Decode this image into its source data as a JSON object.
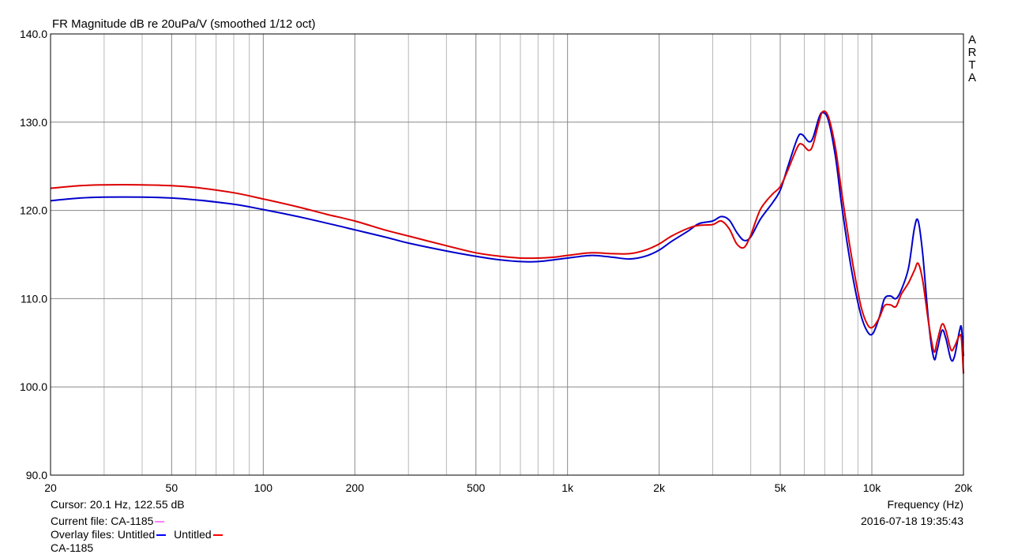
{
  "title": "FR Magnitude dB re 20uPa/V (smoothed 1/12 oct)",
  "watermark": [
    "A",
    "R",
    "T",
    "A"
  ],
  "info": {
    "cursor": "Cursor: 20.1 Hz, 122.55 dB",
    "frequency_label": "Frequency (Hz)",
    "current_file_label": "Current file: CA-1185",
    "current_file_color": "#ff80ff",
    "timestamp": "2016-07-18  19:35:43",
    "overlay_label": "Overlay files:",
    "overlay_files": [
      {
        "name": "Untitled",
        "color": "#0000ff"
      },
      {
        "name": "Untitled",
        "color": "#ff0000"
      }
    ],
    "footer_name": "CA-1185"
  },
  "chart_data": {
    "type": "line",
    "title": "FR Magnitude dB re 20uPa/V (smoothed 1/12 oct)",
    "xlabel": "Frequency (Hz)",
    "ylabel": "",
    "xscale": "log",
    "xlim": [
      20,
      20000
    ],
    "ylim": [
      90,
      140
    ],
    "grid": true,
    "x_ticks": [
      {
        "value": 20,
        "label": "20"
      },
      {
        "value": 50,
        "label": "50"
      },
      {
        "value": 100,
        "label": "100"
      },
      {
        "value": 200,
        "label": "200"
      },
      {
        "value": 500,
        "label": "500"
      },
      {
        "value": 1000,
        "label": "1k"
      },
      {
        "value": 2000,
        "label": "2k"
      },
      {
        "value": 5000,
        "label": "5k"
      },
      {
        "value": 10000,
        "label": "10k"
      },
      {
        "value": 20000,
        "label": "20k"
      }
    ],
    "y_ticks": [
      {
        "value": 90,
        "label": "90.0"
      },
      {
        "value": 100,
        "label": "100.0"
      },
      {
        "value": 110,
        "label": "110.0"
      },
      {
        "value": 120,
        "label": "120.0"
      },
      {
        "value": 130,
        "label": "130.0"
      },
      {
        "value": 140,
        "label": "140.0"
      }
    ],
    "series": [
      {
        "name": "Untitled",
        "color": "#0000cc",
        "points": [
          [
            20,
            121.1
          ],
          [
            25,
            121.4
          ],
          [
            30,
            121.5
          ],
          [
            40,
            121.5
          ],
          [
            50,
            121.4
          ],
          [
            60,
            121.2
          ],
          [
            80,
            120.7
          ],
          [
            100,
            120.1
          ],
          [
            130,
            119.3
          ],
          [
            160,
            118.6
          ],
          [
            200,
            117.8
          ],
          [
            250,
            117.0
          ],
          [
            300,
            116.3
          ],
          [
            400,
            115.4
          ],
          [
            500,
            114.8
          ],
          [
            600,
            114.4
          ],
          [
            700,
            114.2
          ],
          [
            800,
            114.2
          ],
          [
            900,
            114.4
          ],
          [
            1000,
            114.6
          ],
          [
            1200,
            114.9
          ],
          [
            1400,
            114.7
          ],
          [
            1600,
            114.5
          ],
          [
            1800,
            114.8
          ],
          [
            2000,
            115.5
          ],
          [
            2200,
            116.5
          ],
          [
            2500,
            117.7
          ],
          [
            2700,
            118.5
          ],
          [
            3000,
            118.8
          ],
          [
            3200,
            119.3
          ],
          [
            3400,
            118.9
          ],
          [
            3600,
            117.5
          ],
          [
            3800,
            116.6
          ],
          [
            4000,
            117.0
          ],
          [
            4300,
            119.0
          ],
          [
            4700,
            120.8
          ],
          [
            5000,
            122.3
          ],
          [
            5300,
            125.0
          ],
          [
            5700,
            128.2
          ],
          [
            5900,
            128.6
          ],
          [
            6200,
            127.8
          ],
          [
            6400,
            128.2
          ],
          [
            6700,
            130.5
          ],
          [
            6900,
            131.1
          ],
          [
            7200,
            130.2
          ],
          [
            7600,
            126.0
          ],
          [
            8000,
            120.0
          ],
          [
            8600,
            113.0
          ],
          [
            9200,
            108.2
          ],
          [
            9700,
            106.2
          ],
          [
            10100,
            106.1
          ],
          [
            10600,
            108.0
          ],
          [
            11000,
            110.0
          ],
          [
            11500,
            110.3
          ],
          [
            12000,
            110.0
          ],
          [
            12500,
            111.0
          ],
          [
            13200,
            113.5
          ],
          [
            13800,
            118.0
          ],
          [
            14200,
            118.8
          ],
          [
            14700,
            115.0
          ],
          [
            15400,
            107.0
          ],
          [
            16000,
            103.2
          ],
          [
            16400,
            104.2
          ],
          [
            17000,
            106.4
          ],
          [
            17500,
            105.5
          ],
          [
            18200,
            103.1
          ],
          [
            18700,
            103.5
          ],
          [
            19400,
            106.3
          ],
          [
            19700,
            106.7
          ],
          [
            20000,
            103.5
          ]
        ]
      },
      {
        "name": "Untitled",
        "color": "#dd0000",
        "points": [
          [
            20,
            122.5
          ],
          [
            25,
            122.8
          ],
          [
            30,
            122.9
          ],
          [
            40,
            122.9
          ],
          [
            50,
            122.8
          ],
          [
            60,
            122.6
          ],
          [
            80,
            122.0
          ],
          [
            100,
            121.3
          ],
          [
            130,
            120.4
          ],
          [
            160,
            119.6
          ],
          [
            200,
            118.8
          ],
          [
            250,
            117.8
          ],
          [
            300,
            117.1
          ],
          [
            400,
            116.0
          ],
          [
            500,
            115.2
          ],
          [
            600,
            114.8
          ],
          [
            700,
            114.6
          ],
          [
            800,
            114.6
          ],
          [
            900,
            114.7
          ],
          [
            1000,
            114.9
          ],
          [
            1200,
            115.2
          ],
          [
            1400,
            115.1
          ],
          [
            1600,
            115.1
          ],
          [
            1800,
            115.5
          ],
          [
            2000,
            116.2
          ],
          [
            2200,
            117.1
          ],
          [
            2500,
            118.0
          ],
          [
            2700,
            118.3
          ],
          [
            3000,
            118.4
          ],
          [
            3200,
            118.8
          ],
          [
            3400,
            117.9
          ],
          [
            3600,
            116.2
          ],
          [
            3800,
            115.8
          ],
          [
            4000,
            117.2
          ],
          [
            4300,
            120.1
          ],
          [
            4700,
            121.8
          ],
          [
            5000,
            122.7
          ],
          [
            5300,
            124.6
          ],
          [
            5700,
            127.2
          ],
          [
            5900,
            127.5
          ],
          [
            6200,
            126.8
          ],
          [
            6400,
            127.4
          ],
          [
            6700,
            130.0
          ],
          [
            6900,
            131.2
          ],
          [
            7200,
            130.6
          ],
          [
            7600,
            127.0
          ],
          [
            8000,
            121.5
          ],
          [
            8600,
            114.5
          ],
          [
            9200,
            109.2
          ],
          [
            9700,
            107.0
          ],
          [
            10100,
            106.8
          ],
          [
            10600,
            107.9
          ],
          [
            11000,
            109.2
          ],
          [
            11500,
            109.3
          ],
          [
            12000,
            109.1
          ],
          [
            12500,
            110.5
          ],
          [
            13200,
            111.8
          ],
          [
            13800,
            113.2
          ],
          [
            14200,
            114.0
          ],
          [
            14700,
            112.0
          ],
          [
            15400,
            107.0
          ],
          [
            16000,
            104.0
          ],
          [
            16400,
            105.2
          ],
          [
            17000,
            107.1
          ],
          [
            17500,
            106.4
          ],
          [
            18200,
            104.2
          ],
          [
            18700,
            104.6
          ],
          [
            19400,
            105.8
          ],
          [
            19700,
            105.4
          ],
          [
            20000,
            101.5
          ]
        ]
      }
    ]
  }
}
